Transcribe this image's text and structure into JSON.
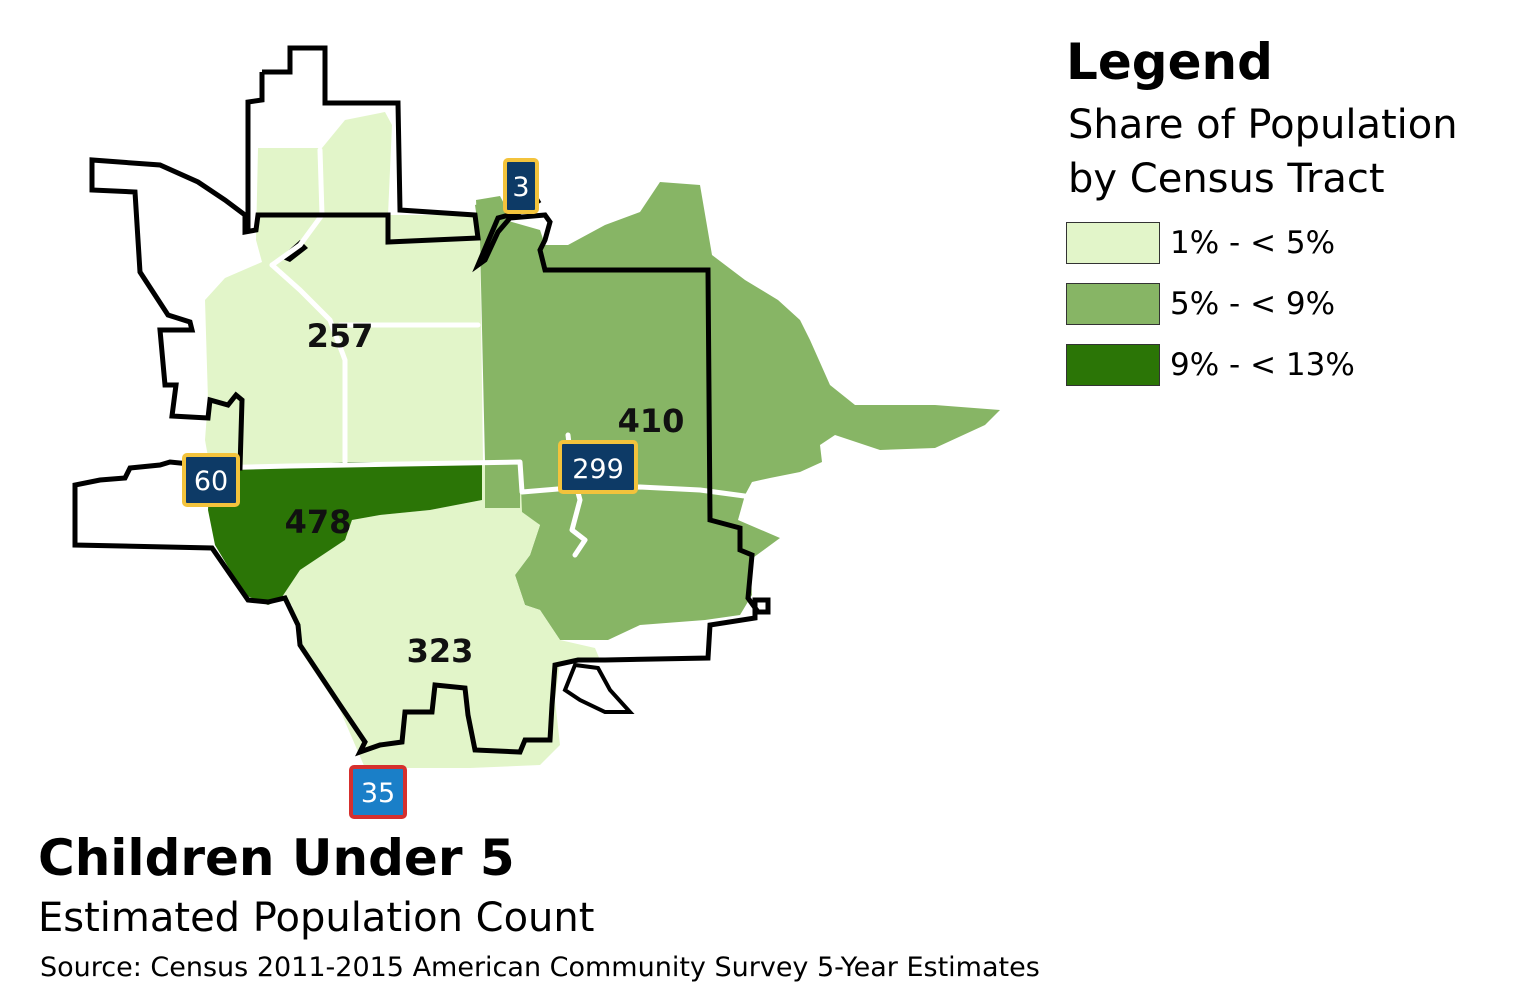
{
  "colors": {
    "light": "#e2f5c9",
    "medium": "#87b565",
    "dark": "#2b7506",
    "boundary": "#000000",
    "road": "#ffffff",
    "state_shield_bg": "#0d3a66",
    "state_shield_border": "#f3c33c",
    "interstate_bg": "#1a7fc8",
    "interstate_border": "#d5302e"
  },
  "legend": {
    "title": "Legend",
    "subtitle": "Share of Population by Census Tract",
    "items": [
      {
        "label": "1% - < 5%",
        "color": "#e2f5c9"
      },
      {
        "label": "5% - < 9%",
        "color": "#87b565"
      },
      {
        "label": "9% - < 13%",
        "color": "#2b7506"
      }
    ]
  },
  "tracts": [
    {
      "value": "257",
      "class": "1% - < 5%"
    },
    {
      "value": "410",
      "class": "5% - < 9%"
    },
    {
      "value": "478",
      "class": "9% - < 13%"
    },
    {
      "value": "323",
      "class": "1% - < 5%"
    }
  ],
  "shields": [
    {
      "number": "3",
      "type": "state"
    },
    {
      "number": "60",
      "type": "state"
    },
    {
      "number": "299",
      "type": "state"
    },
    {
      "number": "35",
      "type": "interstate"
    }
  ],
  "title": "Children Under 5",
  "subtitle": "Estimated Population Count",
  "source": "Source: Census 2011-2015 American Community Survey 5-Year Estimates"
}
